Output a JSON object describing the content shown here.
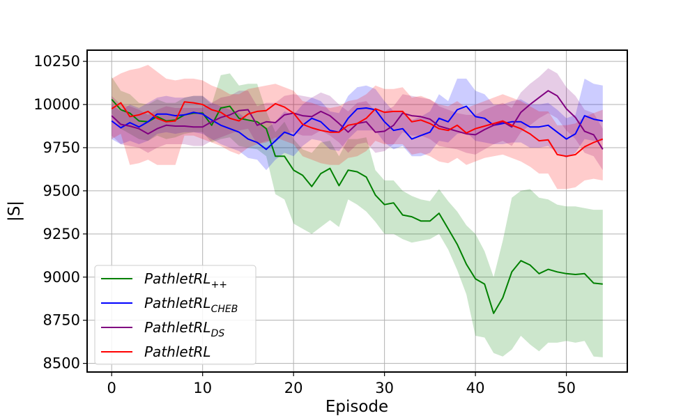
{
  "chart_data": {
    "type": "line",
    "title": "",
    "xlabel": "Episode",
    "ylabel": "|S|",
    "xlim": [
      -2.7,
      56.7
    ],
    "ylim": [
      8450,
      10315
    ],
    "xticks": [
      0,
      10,
      20,
      30,
      40,
      50
    ],
    "xtick_labels": [
      "0",
      "10",
      "20",
      "30",
      "40",
      "50"
    ],
    "yticks": [
      8500,
      8750,
      9000,
      9250,
      9500,
      9750,
      10000,
      10250
    ],
    "ytick_labels": [
      "8500",
      "8750",
      "9000",
      "9250",
      "9500",
      "9750",
      "10000",
      "10250"
    ],
    "grid": true,
    "legend_position": "lower-left",
    "x": [
      0,
      1,
      2,
      3,
      4,
      5,
      6,
      7,
      8,
      9,
      10,
      11,
      12,
      13,
      14,
      15,
      16,
      17,
      18,
      19,
      20,
      21,
      22,
      23,
      24,
      25,
      26,
      27,
      28,
      29,
      30,
      31,
      32,
      33,
      34,
      35,
      36,
      37,
      38,
      39,
      40,
      41,
      42,
      43,
      44,
      45,
      46,
      47,
      48,
      49,
      50,
      51,
      52,
      53,
      54
    ],
    "series": [
      {
        "name": "PathletRL++",
        "label_main": "PathletRL",
        "label_sub": "++",
        "color": "#008000",
        "values": [
          10030,
          9970,
          9950,
          9905,
          9900,
          9930,
          9905,
          9910,
          9940,
          9950,
          9950,
          9880,
          9980,
          9990,
          9920,
          9910,
          9900,
          9860,
          9700,
          9700,
          9620,
          9590,
          9525,
          9600,
          9630,
          9530,
          9620,
          9610,
          9580,
          9475,
          9420,
          9430,
          9360,
          9350,
          9325,
          9325,
          9370,
          9280,
          9190,
          9075,
          8990,
          8960,
          8790,
          8880,
          9030,
          9095,
          9070,
          9020,
          9045,
          9030,
          9020,
          9015,
          9020,
          8965,
          8960
        ],
        "lower": [
          9950,
          9860,
          9830,
          9800,
          9790,
          9820,
          9800,
          9810,
          9830,
          9840,
          9840,
          9780,
          9800,
          9810,
          9760,
          9750,
          9740,
          9700,
          9480,
          9450,
          9310,
          9280,
          9250,
          9290,
          9330,
          9290,
          9450,
          9420,
          9380,
          9320,
          9250,
          9250,
          9220,
          9200,
          9210,
          9220,
          9250,
          9160,
          9040,
          8900,
          8660,
          8650,
          8560,
          8540,
          8580,
          8660,
          8610,
          8570,
          8620,
          8620,
          8630,
          8620,
          8630,
          8540,
          8535
        ],
        "upper": [
          10160,
          10080,
          10060,
          10010,
          10000,
          10030,
          10010,
          10010,
          10040,
          10050,
          10050,
          10000,
          10170,
          10180,
          10110,
          10120,
          10120,
          9960,
          9840,
          9900,
          9800,
          9740,
          9720,
          9780,
          9790,
          9700,
          9800,
          9800,
          9810,
          9620,
          9560,
          9560,
          9500,
          9470,
          9450,
          9440,
          9510,
          9440,
          9380,
          9300,
          9250,
          9150,
          9000,
          9210,
          9460,
          9500,
          9510,
          9460,
          9450,
          9420,
          9410,
          9410,
          9400,
          9390,
          9390
        ]
      },
      {
        "name": "PathletRL_CHEB",
        "label_main": "PathletRL",
        "label_sub": "CHEB",
        "color": "#0000ff",
        "values": [
          9905,
          9865,
          9895,
          9870,
          9900,
          9945,
          9945,
          9935,
          9940,
          9955,
          9945,
          9910,
          9880,
          9860,
          9840,
          9800,
          9780,
          9740,
          9790,
          9840,
          9820,
          9880,
          9920,
          9900,
          9850,
          9840,
          9920,
          9975,
          9980,
          9970,
          9900,
          9850,
          9860,
          9800,
          9820,
          9840,
          9920,
          9900,
          9970,
          9990,
          9930,
          9920,
          9880,
          9890,
          9900,
          9900,
          9870,
          9870,
          9880,
          9840,
          9800,
          9830,
          9935,
          9915,
          9905
        ],
        "lower": [
          9800,
          9770,
          9790,
          9770,
          9790,
          9830,
          9840,
          9830,
          9840,
          9840,
          9830,
          9800,
          9770,
          9750,
          9730,
          9690,
          9680,
          9620,
          9680,
          9720,
          9700,
          9760,
          9800,
          9790,
          9740,
          9730,
          9800,
          9850,
          9850,
          9850,
          9780,
          9740,
          9760,
          9700,
          9700,
          9720,
          9790,
          9780,
          9830,
          9840,
          9790,
          9780,
          9770,
          9770,
          9780,
          9780,
          9750,
          9750,
          9760,
          9720,
          9690,
          9720,
          9800,
          9790,
          9790
        ],
        "upper": [
          10000,
          9960,
          10000,
          9980,
          10010,
          10040,
          10050,
          10040,
          10040,
          10050,
          10050,
          10010,
          9990,
          9970,
          9950,
          9910,
          9890,
          9860,
          9900,
          9960,
          9940,
          10000,
          10040,
          10020,
          9960,
          9950,
          10050,
          10100,
          10110,
          10090,
          10020,
          9960,
          9960,
          9910,
          9930,
          9960,
          10060,
          10020,
          10150,
          10150,
          10080,
          10060,
          10000,
          10000,
          10020,
          10030,
          10000,
          10000,
          10010,
          9970,
          9920,
          9940,
          10150,
          10120,
          10110
        ]
      },
      {
        "name": "PathletRL_DS",
        "label_main": "PathletRL",
        "label_sub": "DS",
        "color": "#800080",
        "values": [
          9935,
          9885,
          9875,
          9860,
          9830,
          9860,
          9880,
          9875,
          9875,
          9870,
          9870,
          9900,
          9925,
          9940,
          9965,
          9970,
          9880,
          9900,
          9895,
          9940,
          9950,
          9935,
          9930,
          9960,
          9935,
          9890,
          9840,
          9890,
          9900,
          9840,
          9845,
          9880,
          9950,
          9935,
          9930,
          9915,
          9875,
          9860,
          9845,
          9830,
          9825,
          9855,
          9880,
          9900,
          9870,
          9955,
          10000,
          10040,
          10080,
          10050,
          9975,
          9925,
          9845,
          9825,
          9740
        ],
        "lower": [
          9820,
          9770,
          9760,
          9750,
          9720,
          9750,
          9770,
          9770,
          9770,
          9760,
          9760,
          9790,
          9810,
          9830,
          9850,
          9860,
          9770,
          9790,
          9780,
          9830,
          9840,
          9820,
          9820,
          9850,
          9820,
          9780,
          9720,
          9770,
          9780,
          9720,
          9730,
          9770,
          9840,
          9820,
          9820,
          9800,
          9760,
          9750,
          9740,
          9720,
          9710,
          9740,
          9770,
          9790,
          9760,
          9840,
          9880,
          9920,
          9950,
          9920,
          9850,
          9800,
          9720,
          9700,
          9620
        ],
        "upper": [
          10050,
          10000,
          9990,
          9970,
          9940,
          9970,
          9990,
          9980,
          9980,
          9980,
          9980,
          10010,
          10040,
          10050,
          10080,
          10080,
          9990,
          10010,
          10010,
          10050,
          10060,
          10050,
          10040,
          10070,
          10050,
          10000,
          9960,
          10010,
          10020,
          9960,
          9960,
          9990,
          10060,
          10050,
          10040,
          10030,
          9990,
          9970,
          9950,
          9940,
          9940,
          9970,
          9990,
          10010,
          9980,
          10070,
          10120,
          10160,
          10210,
          10180,
          10100,
          10050,
          9970,
          9950,
          9860
        ]
      },
      {
        "name": "PathletRL",
        "label_main": "PathletRL",
        "label_sub": "",
        "color": "#ff0000",
        "values": [
          9975,
          10010,
          9930,
          9940,
          9960,
          9920,
          9900,
          9905,
          10015,
          10010,
          10000,
          9970,
          9955,
          9920,
          9905,
          9945,
          9960,
          9965,
          10005,
          9985,
          9950,
          9885,
          9865,
          9850,
          9840,
          9840,
          9880,
          9890,
          9920,
          9975,
          9955,
          9960,
          9960,
          9900,
          9910,
          9890,
          9860,
          9850,
          9880,
          9835,
          9860,
          9875,
          9890,
          9905,
          9880,
          9860,
          9830,
          9790,
          9795,
          9710,
          9700,
          9710,
          9755,
          9780,
          9800
        ],
        "lower": [
          9800,
          9830,
          9650,
          9660,
          9680,
          9650,
          9650,
          9650,
          9820,
          9820,
          9800,
          9780,
          9760,
          9730,
          9710,
          9750,
          9770,
          9780,
          9810,
          9790,
          9770,
          9700,
          9680,
          9660,
          9650,
          9650,
          9690,
          9700,
          9730,
          9790,
          9770,
          9770,
          9770,
          9710,
          9720,
          9700,
          9670,
          9660,
          9690,
          9650,
          9670,
          9690,
          9700,
          9710,
          9690,
          9670,
          9640,
          9600,
          9600,
          9510,
          9510,
          9520,
          9560,
          9570,
          9560
        ],
        "upper": [
          10150,
          10180,
          10200,
          10210,
          10230,
          10190,
          10150,
          10140,
          10150,
          10150,
          10140,
          10110,
          10090,
          10060,
          10060,
          10090,
          10100,
          10110,
          10120,
          10100,
          10080,
          10020,
          10010,
          9990,
          9980,
          9990,
          10020,
          10030,
          10060,
          10110,
          10090,
          10090,
          10100,
          10040,
          10050,
          10030,
          10000,
          9990,
          10020,
          9980,
          10000,
          10020,
          10040,
          10060,
          10040,
          10020,
          9990,
          9960,
          9960,
          9880,
          9880,
          9890,
          9930,
          9950,
          9970
        ]
      }
    ]
  }
}
